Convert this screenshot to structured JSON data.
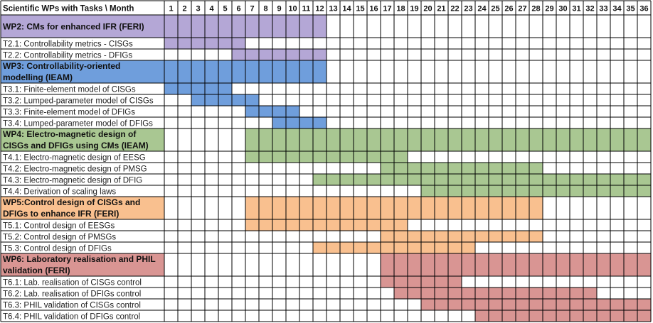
{
  "chart_data": {
    "type": "table",
    "header_label": "Scientific WPs with Tasks  \\  Month",
    "months": [
      1,
      2,
      3,
      4,
      5,
      6,
      7,
      8,
      9,
      10,
      11,
      12,
      13,
      14,
      15,
      16,
      17,
      18,
      19,
      20,
      21,
      22,
      23,
      24,
      25,
      26,
      27,
      28,
      29,
      30,
      31,
      32,
      33,
      34,
      35,
      36
    ],
    "colors": {
      "purple": "#b4a7d6",
      "blue": "#6f9edc",
      "green": "#a9c792",
      "orange": "#f9c08f",
      "red": "#d99593",
      "grid": "#000000"
    },
    "rows": [
      {
        "label": "WP2: CMs for enhanced IFR (FERI)",
        "kind": "wp",
        "lines": 2,
        "color": "purple",
        "start": 1,
        "end": 12
      },
      {
        "label": "T2.1: Controllability metrics - CISGs",
        "kind": "task",
        "lines": 1,
        "color": "purple",
        "start": 1,
        "end": 6
      },
      {
        "label": "T2.2: Controllability metrics - DFIGs",
        "kind": "task",
        "lines": 1,
        "color": "purple",
        "start": 6,
        "end": 12
      },
      {
        "label": "WP3: Controllability-oriented modelling (IEAM)",
        "label_lines": [
          "WP3: Controllability-oriented",
          "modelling (IEAM)"
        ],
        "kind": "wp",
        "lines": 2,
        "color": "blue",
        "start": 1,
        "end": 12
      },
      {
        "label": "T3.1: Finite-element model of CISGs",
        "kind": "task",
        "lines": 1,
        "color": "blue",
        "start": 1,
        "end": 5
      },
      {
        "label": "T3.2: Lumped-parameter model of CISGs",
        "kind": "task",
        "lines": 1,
        "color": "blue",
        "start": 3,
        "end": 7
      },
      {
        "label": "T3.3: Finite-element model of DFIGs",
        "kind": "task",
        "lines": 1,
        "color": "blue",
        "start": 7,
        "end": 10
      },
      {
        "label": "T3.4: Lumped-parameter model of DFIGs",
        "kind": "task",
        "lines": 1,
        "color": "blue",
        "start": 9,
        "end": 12
      },
      {
        "label": "WP4: Electro-magnetic design of CISGs and DFIGs using CMs (IEAM)",
        "label_lines": [
          "WP4: Electro-magnetic design of",
          "CISGs and DFIGs using CMs (IEAM)"
        ],
        "kind": "wp",
        "lines": 2,
        "color": "green",
        "start": 7,
        "end": 36
      },
      {
        "label": "T4.1: Electro-magnetic design of EESG",
        "kind": "task",
        "lines": 1,
        "color": "green",
        "start": 7,
        "end": 18
      },
      {
        "label": "T4.2: Electro-magnetic design of PMSG",
        "kind": "task",
        "lines": 1,
        "color": "green",
        "start": 17,
        "end": 28
      },
      {
        "label": "T4.3: Electro-magnetic design of DFIG",
        "kind": "task",
        "lines": 1,
        "color": "green",
        "start": 12,
        "end": 36
      },
      {
        "label": "T4.4: Derivation of scaling laws",
        "kind": "task",
        "lines": 1,
        "color": "green",
        "start": 20,
        "end": 36
      },
      {
        "label": "WP5:Control design of CISGs and DFIGs to enhance IFR (FERI)",
        "label_lines": [
          "WP5:Control design of CISGs and",
          "DFIGs to enhance IFR (FERI)"
        ],
        "kind": "wp",
        "lines": 2,
        "color": "orange",
        "start": 7,
        "end": 28
      },
      {
        "label": "T5.1: Control design of EESGs",
        "kind": "task",
        "lines": 1,
        "color": "orange",
        "start": 7,
        "end": 18
      },
      {
        "label": "T5.2: Control design of PMSGs",
        "kind": "task",
        "lines": 1,
        "color": "orange",
        "start": 17,
        "end": 28
      },
      {
        "label": "T5.3: Control design of DFIGs",
        "kind": "task",
        "lines": 1,
        "color": "orange",
        "start": 12,
        "end": 23
      },
      {
        "label": "WP6: Laboratory realisation and PHIL validation (FERI)",
        "label_lines": [
          "WP6: Laboratory realisation and PHIL",
          "validation (FERI)"
        ],
        "kind": "wp",
        "lines": 2,
        "color": "red",
        "start": 17,
        "end": 36
      },
      {
        "label": "T6.1: Lab. realisation of CISGs control",
        "kind": "task",
        "lines": 1,
        "color": "red",
        "start": 17,
        "end": 22
      },
      {
        "label": "T6.2: Lab. realisation of DFIGs control",
        "kind": "task",
        "lines": 1,
        "color": "red",
        "start": 18,
        "end": 32
      },
      {
        "label": "T6.3: PHIL validation of CISGs control",
        "kind": "task",
        "lines": 1,
        "color": "red",
        "start": 20,
        "end": 36
      },
      {
        "label": "T6.4: PHIL validation of DFIGs control",
        "kind": "task",
        "lines": 1,
        "color": "red",
        "start": 24,
        "end": 36
      }
    ]
  }
}
